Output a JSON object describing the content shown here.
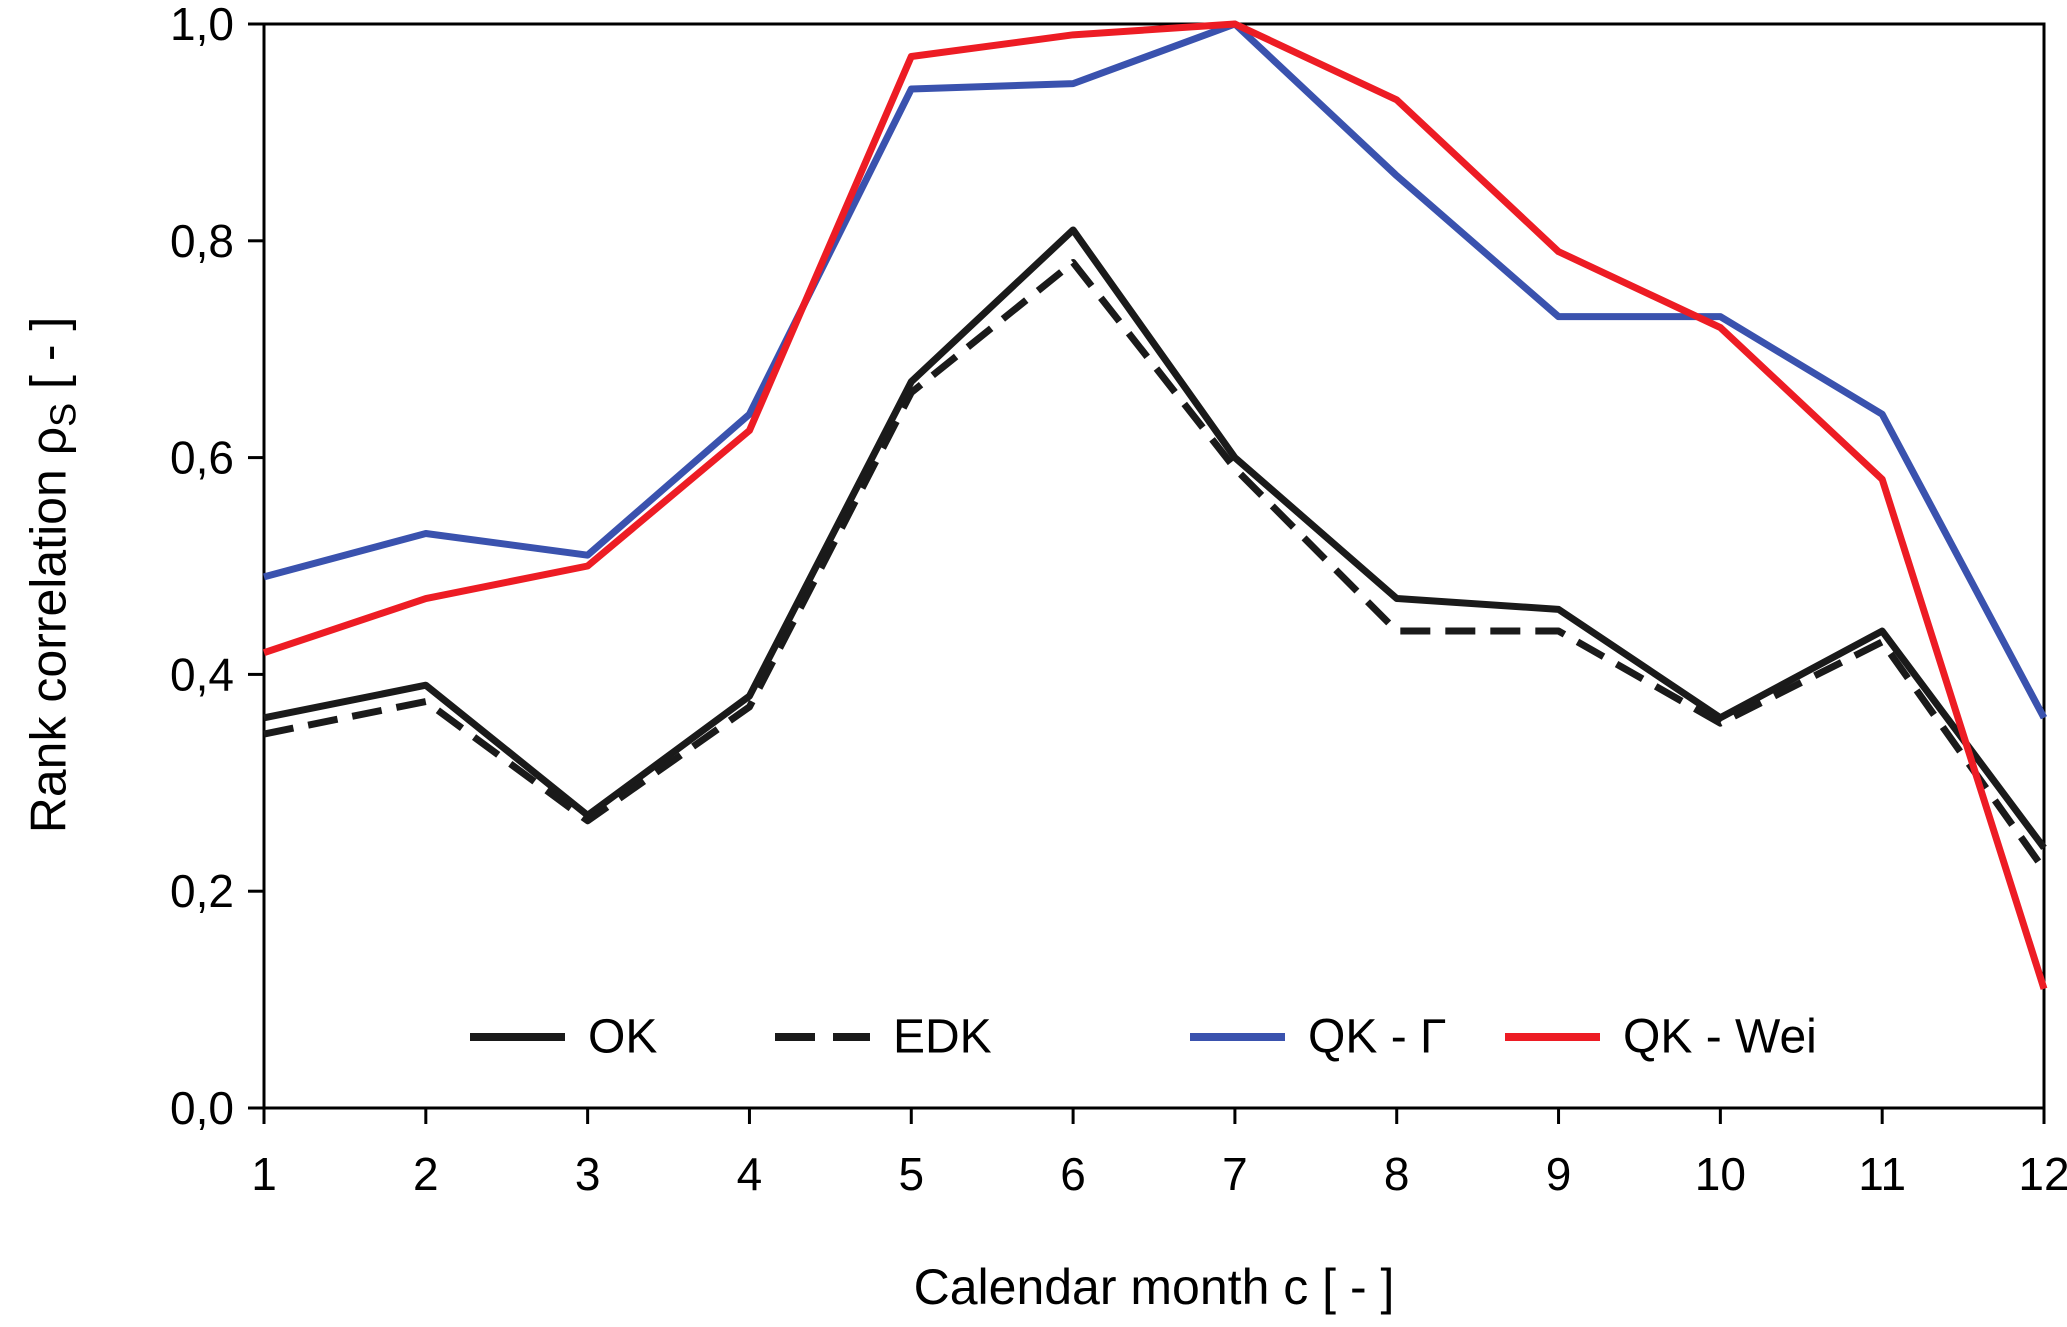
{
  "chart_data": {
    "type": "line",
    "x": [
      1,
      2,
      3,
      4,
      5,
      6,
      7,
      8,
      9,
      10,
      11,
      12
    ],
    "xlabel": "Calendar month c [ - ]",
    "ylabel": "Rank correlation ρS [ - ]",
    "ylim": [
      0.0,
      1.0
    ],
    "ytick_values": [
      0.0,
      0.2,
      0.4,
      0.6,
      0.8,
      1.0
    ],
    "ytick_labels": [
      "0,0",
      "0,2",
      "0,4",
      "0,6",
      "0,8",
      "1,0"
    ],
    "xtick_labels": [
      "1",
      "2",
      "3",
      "4",
      "5",
      "6",
      "7",
      "8",
      "9",
      "10",
      "11",
      "12"
    ],
    "grid": false,
    "legend_position": "inside-bottom",
    "series": [
      {
        "name": "OK",
        "color": "#1a1a1a",
        "style": "solid",
        "values": [
          0.36,
          0.39,
          0.27,
          0.38,
          0.67,
          0.81,
          0.6,
          0.47,
          0.46,
          0.36,
          0.44,
          0.24
        ]
      },
      {
        "name": "EDK",
        "color": "#1a1a1a",
        "style": "dashed",
        "values": [
          0.345,
          0.375,
          0.265,
          0.37,
          0.66,
          0.78,
          0.59,
          0.44,
          0.44,
          0.355,
          0.43,
          0.22
        ]
      },
      {
        "name": "QK - Γ",
        "color": "#3a52ae",
        "style": "solid",
        "values": [
          0.49,
          0.53,
          0.51,
          0.64,
          0.94,
          0.945,
          1.0,
          0.86,
          0.73,
          0.73,
          0.64,
          0.36
        ]
      },
      {
        "name": "QK - Wei",
        "color": "#ed1c24",
        "style": "solid",
        "values": [
          0.42,
          0.47,
          0.5,
          0.625,
          0.97,
          0.99,
          1.0,
          0.93,
          0.79,
          0.72,
          0.58,
          0.11
        ]
      }
    ]
  },
  "chart_text": {
    "ylabel_prefix": "Rank correlation ρ",
    "ylabel_sub": "S",
    "ylabel_suffix": "  [ - ]",
    "xlabel": "Calendar month c [ - ]"
  }
}
